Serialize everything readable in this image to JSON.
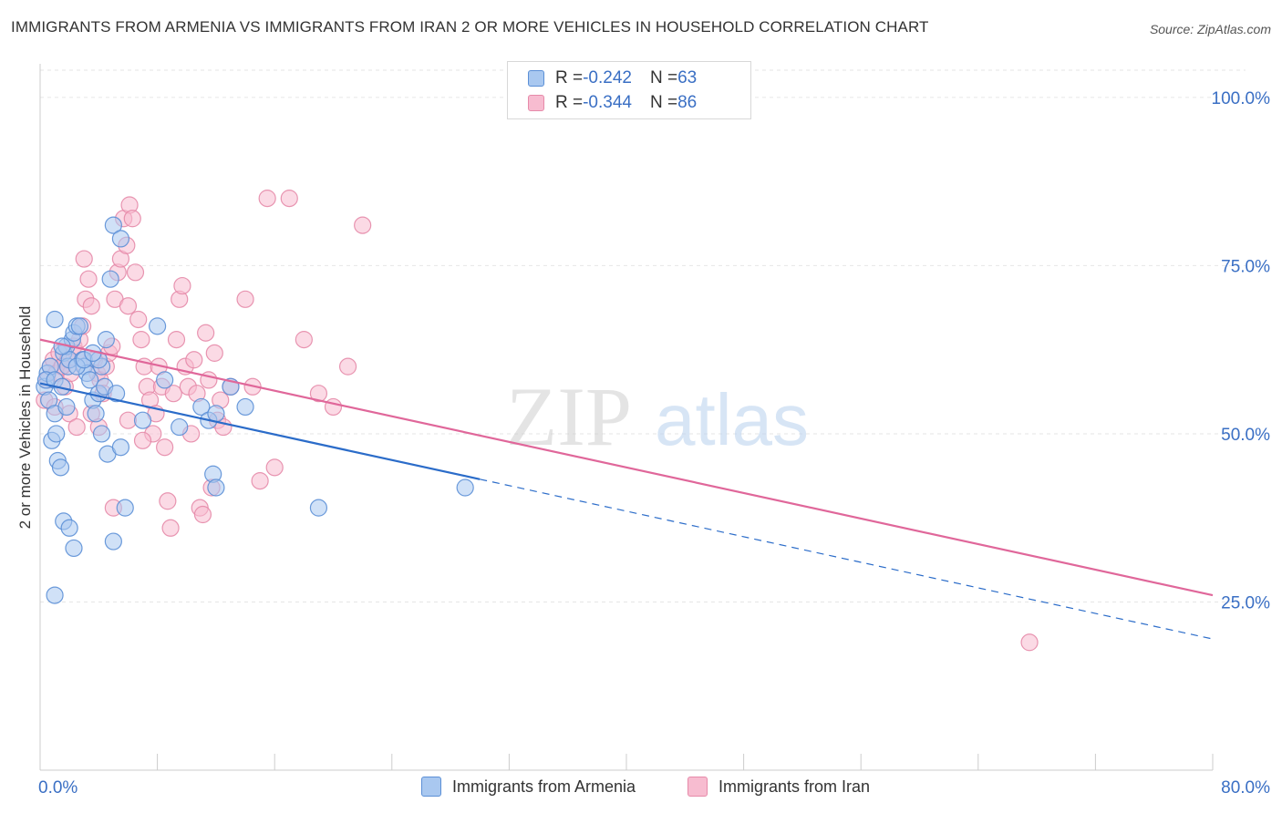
{
  "title": "IMMIGRANTS FROM ARMENIA VS IMMIGRANTS FROM IRAN 2 OR MORE VEHICLES IN HOUSEHOLD CORRELATION CHART",
  "source": "Source: ZipAtlas.com",
  "watermark": {
    "zip": "ZIP",
    "atlas": "atlas"
  },
  "colors": {
    "armenia_fill": "#a9c8f0",
    "armenia_stroke": "#5b8fd6",
    "armenia_line": "#2b6cc9",
    "iran_fill": "#f7bcd0",
    "iran_stroke": "#e68aa9",
    "iran_line": "#e0679a",
    "axis_text": "#3a6fc4",
    "grid": "#e6e6e6"
  },
  "legend": {
    "rows": [
      {
        "r_label": "R = ",
        "r_value": "-0.242",
        "n_label": "N = ",
        "n_value": "63"
      },
      {
        "r_label": "R = ",
        "r_value": "-0.344",
        "n_label": "N = ",
        "n_value": "86"
      }
    ]
  },
  "chart_data": {
    "type": "scatter",
    "xlabel": "",
    "ylabel": "2 or more Vehicles in Household",
    "xlim": [
      0,
      80
    ],
    "ylim": [
      0,
      105
    ],
    "x_tick_labels": [
      "0.0%",
      "80.0%"
    ],
    "y_ticks": [
      25,
      50,
      75,
      100
    ],
    "y_tick_labels": [
      "25.0%",
      "50.0%",
      "75.0%",
      "100.0%"
    ],
    "grid": true,
    "legend_position": "bottom",
    "series": [
      {
        "name": "Immigrants from Armenia",
        "R": -0.242,
        "N": 63,
        "trend": {
          "x0": 0,
          "y0": 57.5,
          "x_solid_end": 30,
          "x1": 80,
          "y1": 19.5
        },
        "points": [
          [
            0.3,
            57
          ],
          [
            0.5,
            59
          ],
          [
            0.7,
            60
          ],
          [
            0.4,
            58
          ],
          [
            1.0,
            58
          ],
          [
            0.6,
            55
          ],
          [
            0.8,
            49
          ],
          [
            1.0,
            53
          ],
          [
            1.1,
            50
          ],
          [
            1.2,
            46
          ],
          [
            1.4,
            45
          ],
          [
            1.5,
            57
          ],
          [
            1.6,
            62
          ],
          [
            1.8,
            63
          ],
          [
            1.9,
            60
          ],
          [
            2.0,
            61
          ],
          [
            2.2,
            64
          ],
          [
            2.3,
            65
          ],
          [
            2.5,
            66
          ],
          [
            2.7,
            66
          ],
          [
            2.9,
            61
          ],
          [
            3.0,
            60
          ],
          [
            3.2,
            59
          ],
          [
            3.4,
            58
          ],
          [
            3.6,
            55
          ],
          [
            3.8,
            53
          ],
          [
            4.0,
            56
          ],
          [
            4.2,
            50
          ],
          [
            4.4,
            57
          ],
          [
            4.6,
            47
          ],
          [
            1.0,
            67
          ],
          [
            1.5,
            63
          ],
          [
            1.6,
            37
          ],
          [
            1.8,
            54
          ],
          [
            2.0,
            36
          ],
          [
            2.3,
            33
          ],
          [
            1.0,
            26
          ],
          [
            5.0,
            81
          ],
          [
            5.5,
            79
          ],
          [
            4.8,
            73
          ],
          [
            4.5,
            64
          ],
          [
            4.2,
            60
          ],
          [
            5.2,
            56
          ],
          [
            5.5,
            48
          ],
          [
            5.0,
            34
          ],
          [
            5.8,
            39
          ],
          [
            7.0,
            52
          ],
          [
            8.0,
            66
          ],
          [
            8.5,
            58
          ],
          [
            9.5,
            51
          ],
          [
            11.0,
            54
          ],
          [
            11.5,
            52
          ],
          [
            11.8,
            44
          ],
          [
            12.0,
            53
          ],
          [
            13.0,
            57
          ],
          [
            14.0,
            54
          ],
          [
            19.0,
            39
          ],
          [
            29.0,
            42
          ],
          [
            2.5,
            60
          ],
          [
            3.0,
            61
          ],
          [
            4.0,
            61
          ],
          [
            3.6,
            62
          ],
          [
            12.0,
            42
          ]
        ]
      },
      {
        "name": "Immigrants from Iran",
        "R": -0.344,
        "N": 86,
        "trend": {
          "x0": 0,
          "y0": 64,
          "x1": 80,
          "y1": 26
        },
        "points": [
          [
            0.3,
            55
          ],
          [
            0.5,
            58
          ],
          [
            0.7,
            60
          ],
          [
            0.9,
            61
          ],
          [
            1.1,
            59
          ],
          [
            1.3,
            62
          ],
          [
            1.5,
            60
          ],
          [
            1.7,
            57
          ],
          [
            1.9,
            61
          ],
          [
            2.1,
            59
          ],
          [
            2.3,
            63
          ],
          [
            2.5,
            62
          ],
          [
            2.7,
            64
          ],
          [
            2.9,
            66
          ],
          [
            3.1,
            70
          ],
          [
            3.3,
            73
          ],
          [
            3.5,
            69
          ],
          [
            3.7,
            61
          ],
          [
            3.9,
            59
          ],
          [
            4.1,
            58
          ],
          [
            4.3,
            56
          ],
          [
            4.5,
            60
          ],
          [
            4.7,
            62
          ],
          [
            4.9,
            63
          ],
          [
            5.1,
            70
          ],
          [
            5.3,
            74
          ],
          [
            5.5,
            76
          ],
          [
            5.7,
            82
          ],
          [
            5.9,
            78
          ],
          [
            6.1,
            84
          ],
          [
            6.3,
            82
          ],
          [
            6.5,
            74
          ],
          [
            6.7,
            67
          ],
          [
            6.9,
            64
          ],
          [
            7.1,
            60
          ],
          [
            7.3,
            57
          ],
          [
            7.5,
            55
          ],
          [
            7.7,
            50
          ],
          [
            7.9,
            53
          ],
          [
            8.1,
            60
          ],
          [
            8.3,
            57
          ],
          [
            8.5,
            48
          ],
          [
            8.7,
            40
          ],
          [
            8.9,
            36
          ],
          [
            9.1,
            56
          ],
          [
            9.3,
            64
          ],
          [
            9.5,
            70
          ],
          [
            9.7,
            72
          ],
          [
            9.9,
            60
          ],
          [
            10.1,
            57
          ],
          [
            10.3,
            50
          ],
          [
            10.5,
            61
          ],
          [
            10.7,
            56
          ],
          [
            10.9,
            39
          ],
          [
            11.1,
            38
          ],
          [
            11.3,
            65
          ],
          [
            11.5,
            58
          ],
          [
            11.7,
            42
          ],
          [
            11.9,
            62
          ],
          [
            12.1,
            52
          ],
          [
            12.3,
            55
          ],
          [
            12.5,
            51
          ],
          [
            13.0,
            57
          ],
          [
            14.0,
            70
          ],
          [
            14.5,
            57
          ],
          [
            15.0,
            43
          ],
          [
            16.0,
            45
          ],
          [
            15.5,
            85
          ],
          [
            17.0,
            85
          ],
          [
            18.0,
            64
          ],
          [
            19.0,
            56
          ],
          [
            20.0,
            54
          ],
          [
            21.0,
            60
          ],
          [
            22.0,
            81
          ],
          [
            3.0,
            76
          ],
          [
            3.5,
            53
          ],
          [
            4.0,
            51
          ],
          [
            5.0,
            39
          ],
          [
            6.0,
            52
          ],
          [
            7.0,
            49
          ],
          [
            2.0,
            53
          ],
          [
            2.5,
            51
          ],
          [
            1.0,
            54
          ],
          [
            1.5,
            60
          ],
          [
            6.0,
            69
          ],
          [
            67.5,
            19
          ]
        ]
      }
    ]
  }
}
